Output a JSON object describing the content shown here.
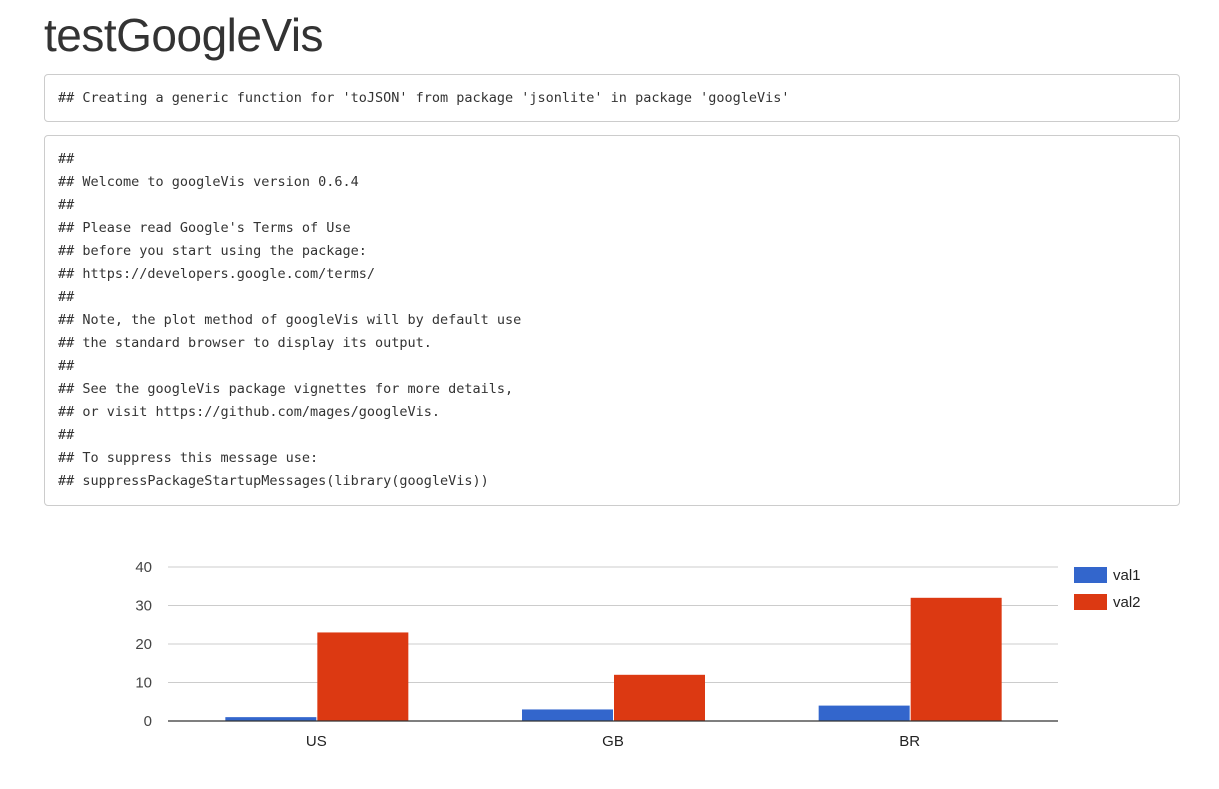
{
  "page": {
    "title": "testGoogleVis"
  },
  "outputs": [
    {
      "lines": [
        "## Creating a generic function for 'toJSON' from package 'jsonlite' in package 'googleVis'"
      ]
    },
    {
      "lines": [
        "##",
        "## Welcome to googleVis version 0.6.4",
        "##",
        "## Please read Google's Terms of Use",
        "## before you start using the package:",
        "## https://developers.google.com/terms/",
        "##",
        "## Note, the plot method of googleVis will by default use",
        "## the standard browser to display its output.",
        "##",
        "## See the googleVis package vignettes for more details,",
        "## or visit https://github.com/mages/googleVis.",
        "##",
        "## To suppress this message use:",
        "## suppressPackageStartupMessages(library(googleVis))"
      ]
    }
  ],
  "chart_data": {
    "type": "bar",
    "categories": [
      "US",
      "GB",
      "BR"
    ],
    "series": [
      {
        "name": "val1",
        "values": [
          1,
          3,
          4
        ],
        "color": "#3366cc"
      },
      {
        "name": "val2",
        "values": [
          23,
          12,
          32
        ],
        "color": "#dc3912"
      }
    ],
    "ylim": [
      0,
      40
    ],
    "yticks": [
      0,
      10,
      20,
      30,
      40
    ],
    "grid": true,
    "legend": "right"
  }
}
